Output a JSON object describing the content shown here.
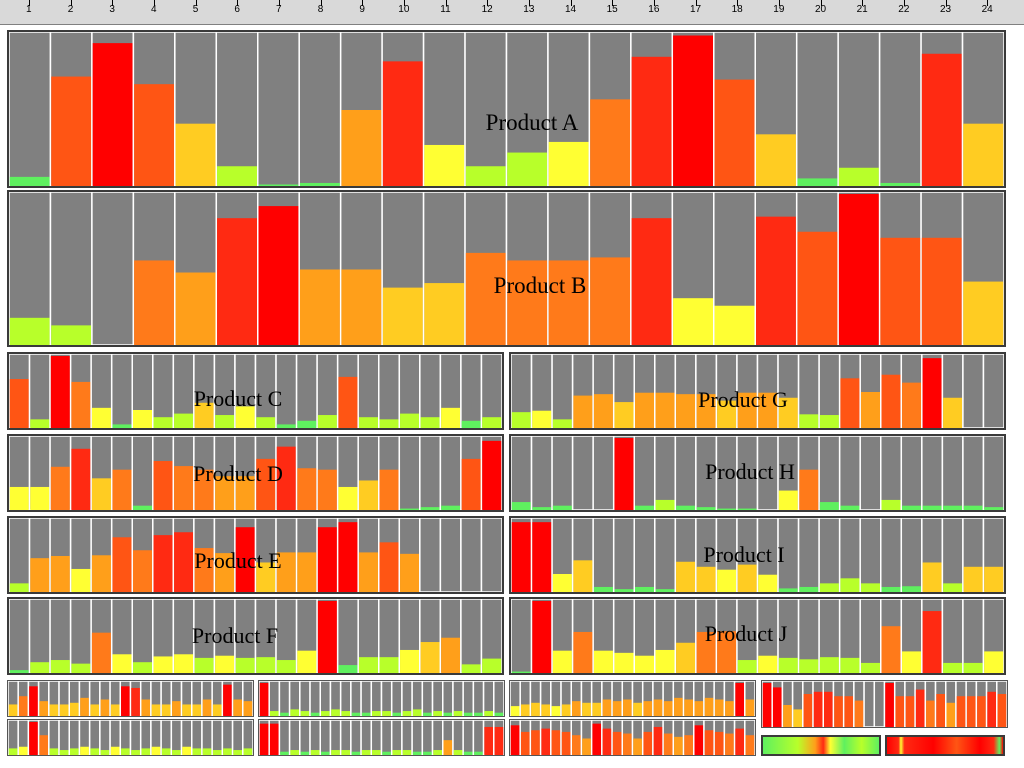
{
  "ruler": {
    "hours": [
      "1",
      "2",
      "3",
      "4",
      "5",
      "6",
      "7",
      "8",
      "9",
      "10",
      "11",
      "12",
      "13",
      "14",
      "15",
      "16",
      "17",
      "18",
      "19",
      "20",
      "21",
      "22",
      "23",
      "24"
    ]
  },
  "colors": {
    "bar_background": "#808080",
    "divider": "#ffffff",
    "scale": [
      "#5ff05f",
      "#b8ff2a",
      "#ffff33",
      "#ffcc22",
      "#ff9f1a",
      "#ff7a1a",
      "#ff5514",
      "#ff2a12",
      "#ff0000"
    ]
  },
  "chart_data": [
    {
      "type": "bar",
      "title": "Product A",
      "categories": [
        "1",
        "2",
        "3",
        "4",
        "5",
        "6",
        "7",
        "8",
        "9",
        "10",
        "11",
        "12",
        "13",
        "14",
        "15",
        "16",
        "17",
        "18",
        "19",
        "20",
        "21",
        "22",
        "23",
        "24"
      ],
      "values": [
        0.06,
        0.72,
        0.94,
        0.67,
        0.41,
        0.13,
        0.01,
        0.02,
        0.5,
        0.82,
        0.27,
        0.13,
        0.22,
        0.29,
        0.57,
        0.85,
        0.99,
        0.7,
        0.34,
        0.05,
        0.12,
        0.02,
        0.87,
        0.41
      ],
      "ylim": [
        0,
        1
      ]
    },
    {
      "type": "bar",
      "title": "Product B",
      "categories": [
        "1",
        "2",
        "3",
        "4",
        "5",
        "6",
        "7",
        "8",
        "9",
        "10",
        "11",
        "12",
        "13",
        "14",
        "15",
        "16",
        "17",
        "18",
        "19",
        "20",
        "21",
        "22",
        "23",
        "24"
      ],
      "values": [
        0.18,
        0.13,
        0.0,
        0.56,
        0.48,
        0.84,
        0.92,
        0.5,
        0.5,
        0.38,
        0.41,
        0.61,
        0.56,
        0.56,
        0.58,
        0.84,
        0.31,
        0.26,
        0.85,
        0.75,
        1.0,
        0.71,
        0.71,
        0.42
      ],
      "ylim": [
        0,
        1
      ]
    },
    {
      "type": "bar",
      "title": "Product C",
      "categories": [
        "1",
        "2",
        "3",
        "4",
        "5",
        "6",
        "7",
        "8",
        "9",
        "10",
        "11",
        "12",
        "13",
        "14",
        "15",
        "16",
        "17",
        "18",
        "19",
        "20",
        "21",
        "22",
        "23",
        "24"
      ],
      "values": [
        0.68,
        0.12,
        1.0,
        0.64,
        0.28,
        0.05,
        0.25,
        0.15,
        0.2,
        0.35,
        0.18,
        0.3,
        0.15,
        0.05,
        0.1,
        0.18,
        0.71,
        0.15,
        0.12,
        0.2,
        0.15,
        0.28,
        0.1,
        0.15
      ],
      "ylim": [
        0,
        1
      ]
    },
    {
      "type": "bar",
      "title": "Product D",
      "categories": [
        "1",
        "2",
        "3",
        "4",
        "5",
        "6",
        "7",
        "8",
        "9",
        "10",
        "11",
        "12",
        "13",
        "14",
        "15",
        "16",
        "17",
        "18",
        "19",
        "20",
        "21",
        "22",
        "23",
        "24"
      ],
      "values": [
        0.32,
        0.32,
        0.6,
        0.85,
        0.44,
        0.56,
        0.06,
        0.68,
        0.61,
        0.56,
        0.47,
        0.47,
        0.71,
        0.88,
        0.58,
        0.56,
        0.32,
        0.41,
        0.56,
        0.02,
        0.04,
        0.06,
        0.71,
        0.96
      ],
      "ylim": [
        0,
        1
      ]
    },
    {
      "type": "bar",
      "title": "Product E",
      "categories": [
        "1",
        "2",
        "3",
        "4",
        "5",
        "6",
        "7",
        "8",
        "9",
        "10",
        "11",
        "12",
        "13",
        "14",
        "15",
        "16",
        "17",
        "18",
        "19",
        "20",
        "21",
        "22",
        "23",
        "24"
      ],
      "values": [
        0.12,
        0.47,
        0.5,
        0.32,
        0.51,
        0.76,
        0.58,
        0.79,
        0.83,
        0.61,
        0.54,
        0.9,
        0.41,
        0.55,
        0.55,
        0.9,
        0.97,
        0.55,
        0.69,
        0.53,
        0.0,
        0.0,
        0.0,
        0.0
      ],
      "ylim": [
        0,
        1
      ]
    },
    {
      "type": "bar",
      "title": "Product F",
      "categories": [
        "1",
        "2",
        "3",
        "4",
        "5",
        "6",
        "7",
        "8",
        "9",
        "10",
        "11",
        "12",
        "13",
        "14",
        "15",
        "16",
        "17",
        "18",
        "19",
        "20",
        "21",
        "22",
        "23",
        "24"
      ],
      "values": [
        0.04,
        0.15,
        0.18,
        0.13,
        0.56,
        0.26,
        0.15,
        0.23,
        0.26,
        0.21,
        0.24,
        0.21,
        0.22,
        0.18,
        0.31,
        1.0,
        0.11,
        0.22,
        0.22,
        0.32,
        0.43,
        0.49,
        0.12,
        0.2
      ],
      "ylim": [
        0,
        1
      ]
    },
    {
      "type": "bar",
      "title": "Product G",
      "categories": [
        "1",
        "2",
        "3",
        "4",
        "5",
        "6",
        "7",
        "8",
        "9",
        "10",
        "11",
        "12",
        "13",
        "14",
        "15",
        "16",
        "17",
        "18",
        "19",
        "20",
        "21",
        "22",
        "23",
        "24"
      ],
      "values": [
        0.22,
        0.24,
        0.12,
        0.45,
        0.47,
        0.36,
        0.49,
        0.49,
        0.47,
        0.47,
        0.38,
        0.49,
        0.49,
        0.42,
        0.19,
        0.18,
        0.69,
        0.5,
        0.74,
        0.63,
        0.97,
        0.42,
        0.0,
        0.0
      ],
      "ylim": [
        0,
        1
      ]
    },
    {
      "type": "bar",
      "title": "Product H",
      "categories": [
        "1",
        "2",
        "3",
        "4",
        "5",
        "6",
        "7",
        "8",
        "9",
        "10",
        "11",
        "12",
        "13",
        "14",
        "15",
        "16",
        "17",
        "18",
        "19",
        "20",
        "21",
        "22",
        "23",
        "24"
      ],
      "values": [
        0.11,
        0.04,
        0.06,
        0.0,
        0.0,
        1.0,
        0.06,
        0.14,
        0.06,
        0.04,
        0.02,
        0.02,
        0.0,
        0.27,
        0.56,
        0.11,
        0.06,
        0.0,
        0.14,
        0.06,
        0.06,
        0.06,
        0.06,
        0.04
      ],
      "ylim": [
        0,
        1
      ]
    },
    {
      "type": "bar",
      "title": "Product I",
      "categories": [
        "1",
        "2",
        "3",
        "4",
        "5",
        "6",
        "7",
        "8",
        "9",
        "10",
        "11",
        "12",
        "13",
        "14",
        "15",
        "16",
        "17",
        "18",
        "19",
        "20",
        "21",
        "22",
        "23",
        "24"
      ],
      "values": [
        0.97,
        0.97,
        0.25,
        0.44,
        0.07,
        0.04,
        0.07,
        0.04,
        0.42,
        0.35,
        0.31,
        0.38,
        0.24,
        0.05,
        0.07,
        0.12,
        0.19,
        0.12,
        0.07,
        0.08,
        0.41,
        0.12,
        0.35,
        0.35
      ],
      "ylim": [
        0,
        1
      ]
    },
    {
      "type": "bar",
      "title": "Product J",
      "categories": [
        "1",
        "2",
        "3",
        "4",
        "5",
        "6",
        "7",
        "8",
        "9",
        "10",
        "11",
        "12",
        "13",
        "14",
        "15",
        "16",
        "17",
        "18",
        "19",
        "20",
        "21",
        "22",
        "23",
        "24"
      ],
      "values": [
        0.02,
        1.0,
        0.31,
        0.57,
        0.31,
        0.28,
        0.24,
        0.32,
        0.42,
        0.57,
        0.58,
        0.18,
        0.24,
        0.21,
        0.19,
        0.22,
        0.21,
        0.14,
        0.65,
        0.3,
        0.86,
        0.14,
        0.14,
        0.3
      ],
      "ylim": [
        0,
        1
      ]
    },
    {
      "type": "bar",
      "categories": [
        "1",
        "2",
        "3",
        "4",
        "5",
        "6",
        "7",
        "8",
        "9",
        "10",
        "11",
        "12",
        "13",
        "14",
        "15",
        "16",
        "17",
        "18",
        "19",
        "20",
        "21",
        "22",
        "23",
        "24"
      ],
      "values": [
        0.35,
        0.6,
        0.9,
        0.45,
        0.35,
        0.35,
        0.4,
        0.55,
        0.35,
        0.5,
        0.35,
        0.9,
        0.85,
        0.5,
        0.35,
        0.35,
        0.45,
        0.35,
        0.35,
        0.5,
        0.35,
        0.95,
        0.5,
        0.45
      ],
      "ylim": [
        0,
        1
      ]
    },
    {
      "type": "bar",
      "categories": [
        "1",
        "2",
        "3",
        "4",
        "5",
        "6",
        "7",
        "8",
        "9",
        "10",
        "11",
        "12",
        "13",
        "14",
        "15",
        "16",
        "17",
        "18",
        "19",
        "20",
        "21",
        "22",
        "23",
        "24"
      ],
      "values": [
        1.0,
        0.15,
        0.1,
        0.2,
        0.15,
        0.1,
        0.15,
        0.2,
        0.15,
        0.1,
        0.1,
        0.15,
        0.15,
        0.1,
        0.15,
        0.2,
        0.1,
        0.15,
        0.1,
        0.15,
        0.1,
        0.1,
        0.15,
        0.1
      ],
      "ylim": [
        0,
        1
      ]
    },
    {
      "type": "bar",
      "categories": [
        "1",
        "2",
        "3",
        "4",
        "5",
        "6",
        "7",
        "8",
        "9",
        "10",
        "11",
        "12",
        "13",
        "14",
        "15",
        "16",
        "17",
        "18",
        "19",
        "20",
        "21",
        "22",
        "23",
        "24"
      ],
      "values": [
        0.3,
        0.35,
        0.4,
        0.35,
        0.3,
        0.35,
        0.45,
        0.4,
        0.4,
        0.5,
        0.45,
        0.5,
        0.4,
        0.45,
        0.5,
        0.45,
        0.55,
        0.5,
        0.45,
        0.55,
        0.5,
        0.45,
        1.0,
        0.5
      ],
      "ylim": [
        0,
        1
      ]
    },
    {
      "type": "bar",
      "categories": [
        "1",
        "2",
        "3",
        "4",
        "5",
        "6",
        "7",
        "8",
        "9",
        "10",
        "11",
        "12",
        "13",
        "14",
        "15",
        "16",
        "17",
        "18",
        "19",
        "20",
        "21",
        "22",
        "23",
        "24"
      ],
      "values": [
        1.0,
        0.9,
        0.5,
        0.4,
        0.75,
        0.8,
        0.8,
        0.7,
        0.7,
        0.6,
        0.0,
        0.0,
        1.0,
        0.7,
        0.7,
        0.85,
        0.6,
        0.75,
        0.55,
        0.7,
        0.7,
        0.7,
        0.8,
        0.75
      ],
      "ylim": [
        0,
        1
      ]
    },
    {
      "type": "bar",
      "categories": [
        "1",
        "2",
        "3",
        "4",
        "5",
        "6",
        "7",
        "8",
        "9",
        "10",
        "11",
        "12",
        "13",
        "14",
        "15",
        "16",
        "17",
        "18",
        "19",
        "20",
        "21",
        "22",
        "23",
        "24"
      ],
      "values": [
        0.2,
        0.25,
        1.0,
        0.6,
        0.2,
        0.15,
        0.2,
        0.25,
        0.2,
        0.15,
        0.25,
        0.2,
        0.15,
        0.2,
        0.25,
        0.2,
        0.15,
        0.25,
        0.2,
        0.2,
        0.15,
        0.2,
        0.15,
        0.2
      ],
      "ylim": [
        0,
        1
      ]
    },
    {
      "type": "bar",
      "categories": [
        "1",
        "2",
        "3",
        "4",
        "5",
        "6",
        "7",
        "8",
        "9",
        "10",
        "11",
        "12",
        "13",
        "14",
        "15",
        "16",
        "17",
        "18",
        "19",
        "20",
        "21",
        "22",
        "23",
        "24"
      ],
      "values": [
        0.95,
        0.95,
        0.1,
        0.15,
        0.1,
        0.15,
        0.1,
        0.15,
        0.15,
        0.1,
        0.15,
        0.15,
        0.1,
        0.15,
        0.15,
        0.1,
        0.1,
        0.15,
        0.45,
        0.15,
        0.1,
        0.1,
        0.85,
        0.85
      ],
      "ylim": [
        0,
        1
      ]
    },
    {
      "type": "bar",
      "categories": [
        "1",
        "2",
        "3",
        "4",
        "5",
        "6",
        "7",
        "8",
        "9",
        "10",
        "11",
        "12",
        "13",
        "14",
        "15",
        "16",
        "17",
        "18",
        "19",
        "20",
        "21",
        "22",
        "23",
        "24"
      ],
      "values": [
        0.9,
        0.7,
        0.75,
        0.8,
        0.75,
        0.7,
        0.6,
        0.5,
        0.95,
        0.8,
        0.7,
        0.65,
        0.5,
        0.7,
        0.85,
        0.65,
        0.55,
        0.6,
        0.9,
        0.75,
        0.7,
        0.65,
        0.8,
        0.6
      ],
      "ylim": [
        0,
        1
      ]
    }
  ]
}
